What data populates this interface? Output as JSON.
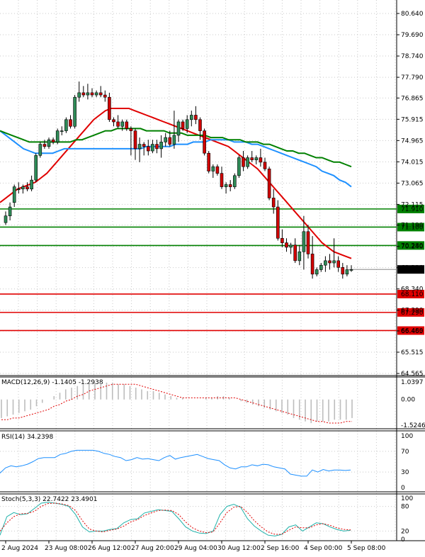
{
  "chart_data": {
    "type": "candlestick",
    "price_axis": {
      "ticks": [
        80.64,
        79.69,
        78.74,
        77.79,
        76.865,
        75.915,
        74.965,
        74.015,
        73.065,
        72.115,
        71.19,
        70.24,
        69.29,
        68.34,
        67.39,
        66.465,
        65.515,
        64.565
      ],
      "tick_labels": [
        "80.640",
        "79.690",
        "78.740",
        "77.790",
        "76.865",
        "75.915",
        "74.965",
        "74.015",
        "73.065",
        "72.115",
        "71.190",
        "70.240",
        "69.290",
        "68.340",
        "67.390",
        "66.465",
        "65.515",
        "64.565"
      ],
      "current_price": 69.21,
      "current_price_label": "69.210"
    },
    "x_axis": {
      "labels": [
        "2 Aug 2024",
        "23 Aug 08:00",
        "26 Aug 12:00",
        "27 Aug 20:00",
        "29 Aug 04:00",
        "30 Aug 12:00",
        "2 Sep 16:00",
        "4 Sep 00:00",
        "5 Sep 08:00"
      ],
      "label_bar_index": [
        0,
        10,
        20,
        30,
        40,
        50,
        60,
        70,
        80
      ]
    },
    "horizontal_levels": [
      {
        "value": 71.91,
        "label": "71.910",
        "color": "#008000"
      },
      {
        "value": 71.1,
        "label": "71.100",
        "color": "#008000"
      },
      {
        "value": 70.28,
        "label": "70.280",
        "color": "#008000"
      },
      {
        "value": 68.11,
        "label": "68.110",
        "color": "#e00000"
      },
      {
        "value": 67.29,
        "label": "67.290",
        "color": "#e00000"
      },
      {
        "value": 66.48,
        "label": "66.480",
        "color": "#e00000"
      }
    ],
    "candles": [
      [
        71.3,
        71.8,
        71.2,
        71.6
      ],
      [
        71.6,
        72.2,
        71.4,
        72.0
      ],
      [
        72.2,
        73.0,
        72.0,
        72.9
      ],
      [
        72.8,
        73.1,
        72.6,
        72.8
      ],
      [
        72.8,
        73.0,
        72.6,
        72.9
      ],
      [
        72.9,
        73.1,
        72.7,
        72.8
      ],
      [
        72.8,
        73.4,
        72.7,
        73.2
      ],
      [
        73.2,
        74.4,
        73.1,
        74.3
      ],
      [
        74.3,
        74.9,
        74.2,
        74.8
      ],
      [
        74.8,
        75.0,
        74.6,
        74.7
      ],
      [
        74.7,
        75.1,
        74.6,
        75.0
      ],
      [
        75.0,
        75.1,
        74.8,
        74.9
      ],
      [
        74.9,
        75.5,
        74.8,
        75.4
      ],
      [
        75.4,
        75.6,
        75.2,
        75.4
      ],
      [
        75.4,
        76.0,
        75.3,
        75.9
      ],
      [
        75.9,
        76.1,
        75.5,
        75.6
      ],
      [
        75.6,
        77.0,
        75.5,
        76.9
      ],
      [
        76.9,
        77.6,
        76.7,
        77.1
      ],
      [
        77.1,
        77.4,
        76.9,
        77.0
      ],
      [
        77.0,
        77.5,
        76.8,
        77.1
      ],
      [
        77.1,
        77.3,
        76.9,
        77.0
      ],
      [
        77.0,
        77.2,
        76.9,
        77.1
      ],
      [
        77.1,
        77.4,
        76.9,
        77.0
      ],
      [
        77.0,
        77.2,
        76.7,
        76.9
      ],
      [
        76.9,
        77.1,
        75.8,
        75.9
      ],
      [
        75.9,
        76.0,
        75.6,
        75.8
      ],
      [
        75.8,
        76.1,
        75.5,
        75.6
      ],
      [
        75.6,
        75.9,
        75.4,
        75.8
      ],
      [
        75.8,
        75.9,
        75.4,
        75.5
      ],
      [
        75.5,
        75.6,
        74.3,
        75.4
      ],
      [
        75.4,
        75.5,
        74.1,
        74.6
      ],
      [
        74.6,
        75.1,
        74.0,
        74.8
      ],
      [
        74.8,
        74.9,
        74.3,
        74.7
      ],
      [
        74.7,
        75.0,
        74.3,
        74.5
      ],
      [
        74.5,
        75.0,
        74.4,
        74.8
      ],
      [
        74.8,
        75.0,
        74.4,
        74.6
      ],
      [
        74.6,
        75.2,
        74.2,
        74.9
      ],
      [
        74.9,
        75.3,
        74.7,
        75.1
      ],
      [
        75.1,
        75.4,
        74.7,
        74.8
      ],
      [
        74.8,
        76.3,
        74.6,
        75.2
      ],
      [
        75.2,
        75.9,
        74.9,
        75.8
      ],
      [
        75.8,
        75.9,
        75.4,
        75.5
      ],
      [
        75.5,
        76.1,
        75.3,
        75.9
      ],
      [
        75.9,
        76.3,
        75.6,
        76.1
      ],
      [
        76.1,
        76.5,
        75.7,
        75.9
      ],
      [
        75.9,
        76.0,
        75.0,
        75.4
      ],
      [
        75.4,
        75.5,
        74.3,
        74.4
      ],
      [
        74.4,
        74.5,
        73.5,
        73.6
      ],
      [
        73.6,
        73.9,
        73.3,
        73.8
      ],
      [
        73.8,
        73.9,
        73.4,
        73.5
      ],
      [
        73.5,
        73.8,
        72.8,
        72.9
      ],
      [
        72.9,
        73.1,
        72.6,
        73.0
      ],
      [
        73.0,
        73.2,
        72.7,
        72.9
      ],
      [
        72.9,
        73.5,
        72.8,
        73.4
      ],
      [
        73.4,
        74.3,
        73.3,
        74.2
      ],
      [
        74.2,
        74.5,
        73.6,
        73.8
      ],
      [
        73.8,
        74.3,
        73.7,
        74.2
      ],
      [
        74.2,
        74.5,
        74.0,
        74.1
      ],
      [
        74.1,
        74.3,
        73.9,
        74.2
      ],
      [
        74.2,
        74.6,
        73.8,
        74.0
      ],
      [
        74.0,
        74.2,
        73.6,
        73.7
      ],
      [
        73.7,
        73.8,
        72.3,
        72.4
      ],
      [
        72.4,
        72.8,
        71.7,
        72.0
      ],
      [
        72.0,
        72.3,
        70.5,
        70.6
      ],
      [
        70.6,
        71.0,
        70.2,
        70.4
      ],
      [
        70.4,
        70.6,
        70.0,
        70.2
      ],
      [
        70.2,
        70.4,
        69.9,
        70.3
      ],
      [
        70.3,
        70.6,
        69.5,
        69.6
      ],
      [
        69.6,
        70.3,
        69.4,
        70.0
      ],
      [
        70.0,
        71.6,
        69.2,
        70.9
      ],
      [
        70.9,
        71.2,
        69.7,
        69.9
      ],
      [
        69.9,
        70.7,
        68.8,
        69.0
      ],
      [
        69.0,
        69.3,
        68.9,
        69.2
      ],
      [
        69.2,
        69.5,
        69.1,
        69.4
      ],
      [
        69.4,
        69.8,
        69.1,
        69.6
      ],
      [
        69.6,
        69.9,
        69.2,
        69.5
      ],
      [
        69.5,
        70.6,
        69.3,
        69.6
      ],
      [
        69.6,
        69.8,
        69.1,
        69.3
      ],
      [
        69.3,
        69.5,
        68.8,
        69.0
      ],
      [
        69.0,
        69.4,
        68.9,
        69.2
      ],
      [
        69.2,
        69.4,
        69.1,
        69.2
      ]
    ],
    "moving_averages": [
      {
        "color": "#e00000",
        "values": [
          72.2,
          72.4,
          72.6,
          72.8,
          72.9,
          73.0,
          73.1,
          73.3,
          73.5,
          73.8,
          74.1,
          74.4,
          74.7,
          75.0,
          75.3,
          75.6,
          75.9,
          76.1,
          76.3,
          76.4,
          76.4,
          76.4,
          76.4,
          76.3,
          76.2,
          76.1,
          76.0,
          75.9,
          75.8,
          75.7,
          75.6,
          75.5,
          75.4,
          75.3,
          75.2,
          75.1,
          75.0,
          74.9,
          74.8,
          74.7,
          74.5,
          74.3,
          74.1,
          73.9,
          73.7,
          73.4,
          73.1,
          72.8,
          72.5,
          72.2,
          71.9,
          71.6,
          71.3,
          71.0,
          70.7,
          70.4,
          70.2,
          70.0,
          69.9,
          69.8,
          69.7
        ]
      },
      {
        "color": "#1e90ff",
        "values": [
          75.4,
          75.2,
          75.0,
          74.8,
          74.6,
          74.5,
          74.4,
          74.4,
          74.4,
          74.4,
          74.5,
          74.6,
          74.6,
          74.6,
          74.6,
          74.6,
          74.6,
          74.6,
          74.6,
          74.6,
          74.6,
          74.6,
          74.6,
          74.6,
          74.6,
          74.7,
          74.7,
          74.7,
          74.7,
          74.7,
          74.8,
          74.8,
          74.8,
          74.9,
          74.9,
          74.9,
          75.0,
          75.0,
          75.0,
          75.0,
          74.9,
          74.9,
          74.9,
          74.8,
          74.8,
          74.7,
          74.6,
          74.5,
          74.4,
          74.3,
          74.2,
          74.1,
          74.0,
          73.9,
          73.8,
          73.6,
          73.5,
          73.4,
          73.2,
          73.1,
          72.9
        ]
      },
      {
        "color": "#008000",
        "values": [
          75.4,
          75.3,
          75.2,
          75.1,
          75.0,
          74.9,
          74.9,
          74.9,
          74.9,
          74.9,
          74.9,
          74.9,
          74.9,
          75.0,
          75.0,
          75.1,
          75.2,
          75.3,
          75.4,
          75.4,
          75.5,
          75.5,
          75.5,
          75.5,
          75.5,
          75.4,
          75.4,
          75.4,
          75.4,
          75.3,
          75.3,
          75.3,
          75.2,
          75.2,
          75.2,
          75.2,
          75.1,
          75.1,
          75.1,
          75.0,
          75.0,
          75.0,
          74.9,
          74.9,
          74.9,
          74.8,
          74.8,
          74.7,
          74.6,
          74.5,
          74.5,
          74.4,
          74.4,
          74.3,
          74.2,
          74.2,
          74.1,
          74.0,
          74.0,
          73.9,
          73.8
        ]
      }
    ],
    "macd": {
      "label": "MACD(12,26,9) -1.1405 -1.2938",
      "ticks": [
        1.0397,
        0.0,
        -1.5246
      ],
      "tick_labels": [
        "1.0397",
        "0.00",
        "-1.5246"
      ],
      "histogram": [
        -1.1,
        -1.0,
        -0.9,
        -0.8,
        -0.7,
        -0.6,
        -0.4,
        -0.2,
        0.0,
        0.2,
        0.4,
        0.6,
        0.7,
        0.8,
        0.9,
        1.0,
        1.0,
        1.0,
        1.0,
        1.0,
        0.9,
        0.9,
        0.8,
        0.7,
        0.6,
        0.5,
        0.5,
        0.4,
        0.3,
        0.2,
        0.1,
        0.1,
        0.0,
        0.0,
        0.0,
        0.1,
        0.1,
        0.2,
        0.2,
        0.1,
        0.0,
        -0.1,
        -0.2,
        -0.3,
        -0.4,
        -0.5,
        -0.6,
        -0.7,
        -0.8,
        -0.9,
        -1.1,
        -1.2,
        -1.3,
        -1.4,
        -1.3,
        -1.3,
        -1.3,
        -1.2,
        -1.2,
        -1.2,
        -1.1
      ],
      "signal": [
        -1.2,
        -1.2,
        -1.1,
        -1.1,
        -1.0,
        -0.9,
        -0.8,
        -0.7,
        -0.6,
        -0.4,
        -0.3,
        -0.1,
        0.0,
        0.2,
        0.3,
        0.5,
        0.6,
        0.7,
        0.8,
        0.9,
        0.9,
        0.9,
        0.9,
        0.9,
        0.8,
        0.7,
        0.6,
        0.5,
        0.4,
        0.3,
        0.2,
        0.1,
        0.1,
        0.1,
        0.1,
        0.1,
        0.1,
        0.1,
        0.1,
        0.1,
        0.1,
        0.0,
        -0.1,
        -0.2,
        -0.3,
        -0.4,
        -0.5,
        -0.6,
        -0.7,
        -0.8,
        -0.9,
        -1.0,
        -1.1,
        -1.2,
        -1.3,
        -1.3,
        -1.4,
        -1.4,
        -1.4,
        -1.3,
        -1.3
      ]
    },
    "rsi": {
      "label": "RSI(14) 34.2398",
      "ticks": [
        100,
        70,
        30,
        0
      ],
      "tick_labels": [
        "100",
        "70",
        "30",
        "0"
      ],
      "values": [
        28,
        38,
        42,
        40,
        42,
        45,
        50,
        56,
        58,
        58,
        58,
        64,
        66,
        70,
        72,
        72,
        72,
        72,
        70,
        66,
        64,
        60,
        58,
        52,
        54,
        58,
        55,
        56,
        54,
        52,
        58,
        62,
        55,
        58,
        60,
        62,
        64,
        60,
        56,
        54,
        52,
        44,
        38,
        36,
        40,
        40,
        44,
        42,
        45,
        44,
        40,
        38,
        36,
        26,
        24,
        22,
        22,
        34,
        30,
        35,
        32,
        34,
        34,
        33,
        34
      ]
    },
    "stoch": {
      "label": "Stoch(5,3,3) 22.7422 23.4901",
      "ticks": [
        100,
        80,
        20,
        0
      ],
      "tick_labels": [
        "100",
        "80",
        "20",
        "0"
      ],
      "k": [
        10,
        55,
        65,
        60,
        62,
        75,
        88,
        90,
        88,
        85,
        80,
        60,
        30,
        18,
        20,
        20,
        24,
        26,
        40,
        48,
        50,
        64,
        68,
        72,
        70,
        68,
        50,
        30,
        20,
        15,
        14,
        20,
        60,
        80,
        85,
        78,
        50,
        32,
        20,
        10,
        8,
        12,
        30,
        35,
        20,
        30,
        40,
        38,
        30,
        24,
        20,
        22
      ],
      "d": [
        20,
        40,
        55,
        62,
        63,
        68,
        80,
        87,
        88,
        86,
        82,
        70,
        45,
        25,
        20,
        18,
        22,
        25,
        32,
        42,
        48,
        58,
        64,
        70,
        71,
        70,
        60,
        42,
        28,
        20,
        16,
        18,
        40,
        65,
        78,
        80,
        65,
        45,
        30,
        18,
        12,
        12,
        22,
        30,
        28,
        28,
        35,
        38,
        34,
        28,
        24,
        23
      ]
    }
  }
}
